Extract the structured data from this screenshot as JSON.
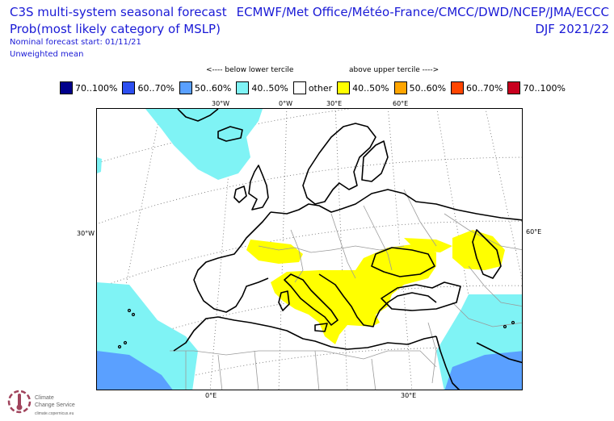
{
  "header": {
    "title_line1": "C3S multi-system seasonal forecast",
    "title_line2": "Prob(most likely category of MSLP)",
    "nominal_start": "Nominal forecast start: 01/11/21",
    "weighting": "Unweighted mean",
    "centres": "ECMWF/Met Office/Météo-France/CMCC/DWD/NCEP/JMA/ECCC",
    "season": "DJF 2021/22"
  },
  "legend": {
    "below_heading": "<---- below lower tercile",
    "above_heading": "above upper tercile ---->",
    "items": [
      {
        "label": "70..100%",
        "color": "#00008b"
      },
      {
        "label": "60..70%",
        "color": "#2d4ff0"
      },
      {
        "label": "50..60%",
        "color": "#5aa0ff"
      },
      {
        "label": "40..50%",
        "color": "#7ff3f5"
      },
      {
        "label": "other",
        "color": "#ffffff"
      },
      {
        "label": "40..50%",
        "color": "#ffff00"
      },
      {
        "label": "50..60%",
        "color": "#ffa500"
      },
      {
        "label": "60..70%",
        "color": "#ff4500"
      },
      {
        "label": "70..100%",
        "color": "#c8001e"
      }
    ]
  },
  "map": {
    "top_labels": [
      "30°W",
      "0°W",
      "30°E",
      "60°E"
    ],
    "bottom_labels": [
      "0°E",
      "30°E"
    ],
    "left_label": "30°W",
    "right_label": "60°E",
    "colors": {
      "cyan": "#7ff3f5",
      "mid_blue": "#5aa0ff",
      "yellow": "#ffff00",
      "land_line": "#000000",
      "border": "#999999"
    }
  },
  "logo": {
    "text_line1": "Climate",
    "text_line2": "Change Service",
    "text_line3": "climate.copernicus.eu"
  }
}
